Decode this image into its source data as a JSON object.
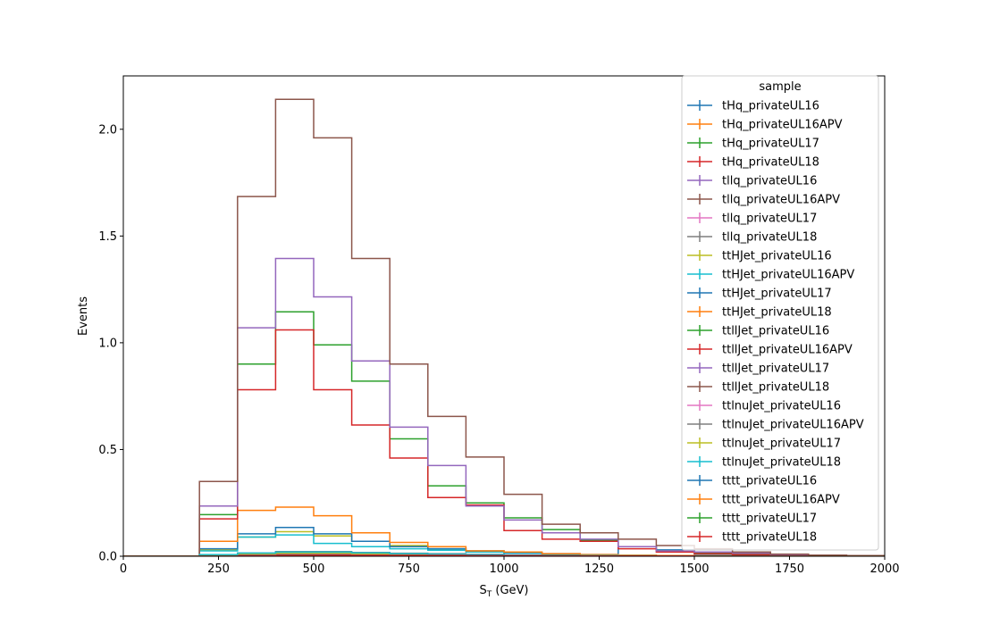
{
  "chart_data": {
    "type": "histogram-step",
    "xlabel": "S",
    "xlabel_sub": "T",
    "xlabel_unit": " (GeV)",
    "ylabel": "Events",
    "xlim": [
      0,
      2000
    ],
    "ylim": [
      0,
      2.25
    ],
    "xticks": [
      0,
      250,
      500,
      750,
      1000,
      1250,
      1500,
      1750,
      2000
    ],
    "yticks": [
      0.0,
      0.5,
      1.0,
      1.5,
      2.0
    ],
    "xtick_labels": [
      "0",
      "250",
      "500",
      "750",
      "1000",
      "1250",
      "1500",
      "1750",
      "2000"
    ],
    "ytick_labels": [
      "0.0",
      "0.5",
      "1.0",
      "1.5",
      "2.0"
    ],
    "grid": false,
    "legend_title": "sample",
    "legend_position": "top-right",
    "bin_edges": [
      0,
      100,
      200,
      300,
      400,
      500,
      600,
      700,
      800,
      900,
      1000,
      1100,
      1200,
      1300,
      1400,
      1500,
      1600,
      1700,
      1800,
      1900,
      2000
    ],
    "series": [
      {
        "name": "tHq_privateUL16",
        "color": "#1f77b4",
        "values": [
          0,
          0,
          0,
          0.005,
          0.005,
          0.005,
          0.005,
          0.004,
          0.003,
          0.002,
          0.002,
          0.001,
          0.001,
          0.001,
          0,
          0,
          0,
          0,
          0,
          0
        ]
      },
      {
        "name": "tHq_privateUL16APV",
        "color": "#ff7f0e",
        "values": [
          0,
          0,
          0,
          0.005,
          0.005,
          0.005,
          0.005,
          0.004,
          0.003,
          0.002,
          0.002,
          0.001,
          0.001,
          0.001,
          0,
          0,
          0,
          0,
          0,
          0
        ]
      },
      {
        "name": "tHq_privateUL17",
        "color": "#2ca02c",
        "values": [
          0,
          0,
          0,
          0.006,
          0.007,
          0.007,
          0.006,
          0.005,
          0.004,
          0.003,
          0.002,
          0.002,
          0.001,
          0.001,
          0,
          0,
          0,
          0,
          0,
          0
        ]
      },
      {
        "name": "tHq_privateUL18",
        "color": "#d62728",
        "values": [
          0,
          0,
          0,
          0.008,
          0.01,
          0.01,
          0.008,
          0.006,
          0.005,
          0.004,
          0.003,
          0.002,
          0.001,
          0.001,
          0,
          0,
          0,
          0,
          0,
          0
        ]
      },
      {
        "name": "tllq_privateUL16",
        "color": "#9467bd",
        "values": [
          0,
          0,
          0.005,
          0.01,
          0.015,
          0.015,
          0.012,
          0.01,
          0.008,
          0.006,
          0.004,
          0.003,
          0.002,
          0.001,
          0.001,
          0,
          0,
          0,
          0,
          0
        ]
      },
      {
        "name": "tllq_privateUL16APV",
        "color": "#8c564b",
        "values": [
          0,
          0,
          0.005,
          0.01,
          0.015,
          0.015,
          0.012,
          0.01,
          0.008,
          0.006,
          0.004,
          0.003,
          0.002,
          0.001,
          0.001,
          0,
          0,
          0,
          0,
          0
        ]
      },
      {
        "name": "tllq_privateUL17",
        "color": "#e377c2",
        "values": [
          0,
          0,
          0.005,
          0.012,
          0.018,
          0.018,
          0.014,
          0.012,
          0.01,
          0.007,
          0.005,
          0.003,
          0.002,
          0.001,
          0.001,
          0,
          0,
          0,
          0,
          0
        ]
      },
      {
        "name": "tllq_privateUL18",
        "color": "#7f7f7f",
        "values": [
          0,
          0,
          0.006,
          0.015,
          0.022,
          0.022,
          0.018,
          0.014,
          0.012,
          0.009,
          0.006,
          0.004,
          0.003,
          0.002,
          0.001,
          0,
          0,
          0,
          0,
          0
        ]
      },
      {
        "name": "ttHJet_privateUL16",
        "color": "#bcbd22",
        "values": [
          0,
          0,
          0.03,
          0.09,
          0.115,
          0.095,
          0.07,
          0.05,
          0.035,
          0.025,
          0.017,
          0.01,
          0.007,
          0.005,
          0.003,
          0.002,
          0.001,
          0.001,
          0,
          0
        ]
      },
      {
        "name": "ttHJet_privateUL16APV",
        "color": "#17becf",
        "values": [
          0,
          0,
          0.025,
          0.09,
          0.1,
          0.06,
          0.045,
          0.035,
          0.028,
          0.02,
          0.014,
          0.009,
          0.006,
          0.004,
          0.003,
          0.002,
          0.001,
          0.001,
          0,
          0
        ]
      },
      {
        "name": "ttHJet_privateUL17",
        "color": "#1f77b4",
        "values": [
          0,
          0,
          0.035,
          0.105,
          0.135,
          0.105,
          0.07,
          0.045,
          0.035,
          0.025,
          0.018,
          0.012,
          0.008,
          0.045,
          0.03,
          0.01,
          0.006,
          0.004,
          0.002,
          0.001
        ]
      },
      {
        "name": "ttHJet_privateUL18",
        "color": "#ff7f0e",
        "values": [
          0,
          0,
          0.07,
          0.215,
          0.23,
          0.19,
          0.11,
          0.065,
          0.045,
          0.025,
          0.02,
          0.012,
          0.008,
          0.005,
          0.003,
          0.002,
          0.001,
          0.001,
          0,
          0
        ]
      },
      {
        "name": "ttllJet_privateUL16",
        "color": "#2ca02c",
        "values": [
          0,
          0,
          0.195,
          0.9,
          1.145,
          0.99,
          0.82,
          0.55,
          0.33,
          0.25,
          0.18,
          0.125,
          0.075,
          0.045,
          0.025,
          0.015,
          0.01,
          0.006,
          0.003,
          0.002
        ]
      },
      {
        "name": "ttllJet_privateUL16APV",
        "color": "#d62728",
        "values": [
          0,
          0,
          0.175,
          0.78,
          1.06,
          0.78,
          0.615,
          0.46,
          0.275,
          0.24,
          0.12,
          0.08,
          0.07,
          0.035,
          0.02,
          0.012,
          0.008,
          0.005,
          0.003,
          0.002
        ]
      },
      {
        "name": "ttllJet_privateUL17",
        "color": "#9467bd",
        "values": [
          0,
          0,
          0.235,
          1.07,
          1.395,
          1.215,
          0.915,
          0.605,
          0.425,
          0.235,
          0.17,
          0.11,
          0.08,
          0.045,
          0.025,
          0.02,
          0.015,
          0.008,
          0.004,
          0.002
        ]
      },
      {
        "name": "ttllJet_privateUL18",
        "color": "#8c564b",
        "values": [
          0,
          0,
          0.35,
          1.685,
          2.14,
          1.96,
          1.395,
          0.9,
          0.655,
          0.465,
          0.29,
          0.15,
          0.11,
          0.08,
          0.05,
          0.035,
          0.02,
          0.01,
          0.005,
          0.003
        ]
      },
      {
        "name": "ttlnuJet_privateUL16",
        "color": "#e377c2",
        "values": [
          0,
          0,
          0.005,
          0.01,
          0.012,
          0.012,
          0.01,
          0.008,
          0.006,
          0.005,
          0.003,
          0.002,
          0.002,
          0.001,
          0.001,
          0,
          0,
          0,
          0,
          0
        ]
      },
      {
        "name": "ttlnuJet_privateUL16APV",
        "color": "#7f7f7f",
        "values": [
          0,
          0,
          0.005,
          0.01,
          0.012,
          0.012,
          0.01,
          0.008,
          0.006,
          0.005,
          0.003,
          0.002,
          0.002,
          0.001,
          0.001,
          0,
          0,
          0,
          0,
          0
        ]
      },
      {
        "name": "ttlnuJet_privateUL17",
        "color": "#bcbd22",
        "values": [
          0,
          0,
          0.006,
          0.012,
          0.015,
          0.015,
          0.012,
          0.01,
          0.008,
          0.006,
          0.004,
          0.003,
          0.002,
          0.001,
          0.001,
          0,
          0,
          0,
          0,
          0
        ]
      },
      {
        "name": "ttlnuJet_privateUL18",
        "color": "#17becf",
        "values": [
          0,
          0,
          0.008,
          0.015,
          0.02,
          0.02,
          0.016,
          0.012,
          0.01,
          0.008,
          0.005,
          0.004,
          0.003,
          0.002,
          0.001,
          0,
          0,
          0,
          0,
          0
        ]
      },
      {
        "name": "tttt_privateUL16",
        "color": "#1f77b4",
        "values": [
          0,
          0,
          0,
          0,
          0.001,
          0.002,
          0.002,
          0.002,
          0.002,
          0.002,
          0.002,
          0.001,
          0.001,
          0.001,
          0.001,
          0,
          0,
          0,
          0,
          0
        ]
      },
      {
        "name": "tttt_privateUL16APV",
        "color": "#ff7f0e",
        "values": [
          0,
          0,
          0,
          0,
          0.001,
          0.002,
          0.002,
          0.002,
          0.002,
          0.002,
          0.002,
          0.001,
          0.001,
          0.001,
          0.001,
          0,
          0,
          0,
          0,
          0
        ]
      },
      {
        "name": "tttt_privateUL17",
        "color": "#2ca02c",
        "values": [
          0,
          0,
          0,
          0.001,
          0.002,
          0.003,
          0.003,
          0.003,
          0.003,
          0.003,
          0.002,
          0.002,
          0.001,
          0.001,
          0.001,
          0,
          0,
          0,
          0,
          0
        ]
      },
      {
        "name": "tttt_privateUL18",
        "color": "#d62728",
        "values": [
          0,
          0,
          0,
          0.001,
          0.003,
          0.004,
          0.004,
          0.004,
          0.004,
          0.003,
          0.003,
          0.002,
          0.001,
          0.001,
          0.001,
          0,
          0,
          0,
          0,
          0
        ]
      }
    ]
  }
}
